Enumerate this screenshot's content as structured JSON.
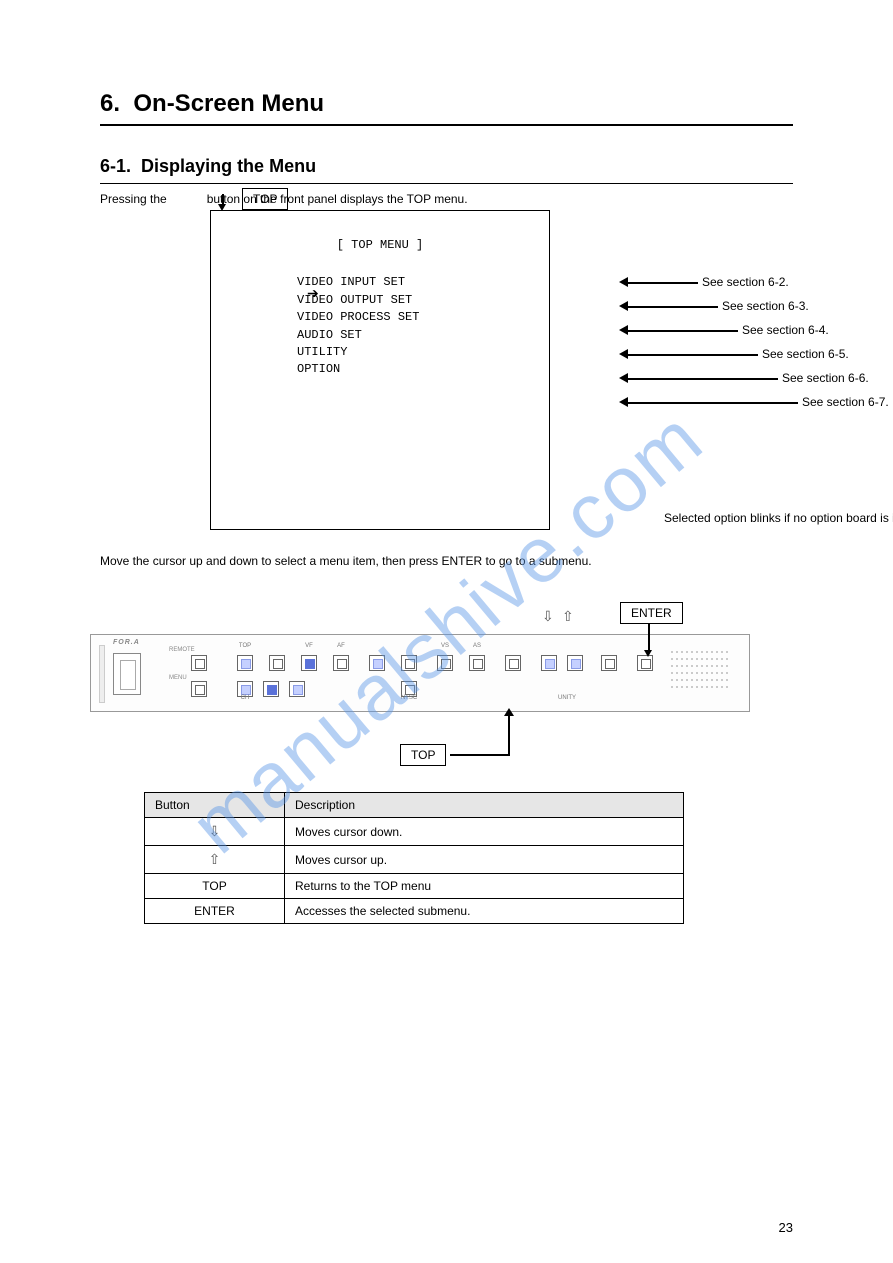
{
  "page": {
    "section_number": "6.",
    "section_title": "On-Screen Menu",
    "subsection_number": "6-1.",
    "subsection_title": "Displaying the Menu",
    "intro_text": "Pressing the         button on the front panel displays the TOP menu.",
    "top_button_label": "TOP",
    "page_number": "23"
  },
  "menu_box": {
    "title": "[ TOP MENU ]",
    "items": [
      "VIDEO INPUT SET",
      "VIDEO OUTPUT SET",
      "VIDEO PROCESS SET",
      "AUDIO SET",
      "UTILITY",
      "OPTION"
    ],
    "cursor_index": 0
  },
  "right_labels": [
    "See section 6-2.",
    "See section 6-3.",
    "See section 6-4.",
    "See section 6-5.",
    "See section 6-6.",
    "See section 6-7."
  ],
  "note_text": "Selected option blinks if no option board is installed.",
  "mid_text": "Move the cursor up and down to select a menu item, then press ENTER to go to a submenu.",
  "enter_button_label": "ENTER",
  "panel": {
    "logo": "FOR.A",
    "remote": "REMOTE",
    "menu": "MENU",
    "top_row_labels": [
      "TOP",
      "",
      "VF",
      "AF",
      "",
      "",
      "VS",
      "AS",
      "",
      "",
      ""
    ],
    "bot_row_labels": [
      "CH",
      "",
      "",
      "NTSC",
      "UNITY"
    ],
    "arrow_btns": [
      "⇩",
      "⇧"
    ],
    "top_button_highlight": 0
  },
  "desc_table": {
    "headers": [
      "Button",
      "Description"
    ],
    "rows": [
      [
        "⇩",
        "Moves cursor down."
      ],
      [
        "⇧",
        "Moves cursor up."
      ],
      [
        "TOP",
        "Returns to the TOP menu"
      ],
      [
        "ENTER",
        "Accesses the selected submenu."
      ]
    ]
  },
  "watermark": "manualshive.com",
  "colors": {
    "highlight_bg": "#c5e8f0",
    "watermark_color": "rgba(90,150,230,0.45)"
  }
}
